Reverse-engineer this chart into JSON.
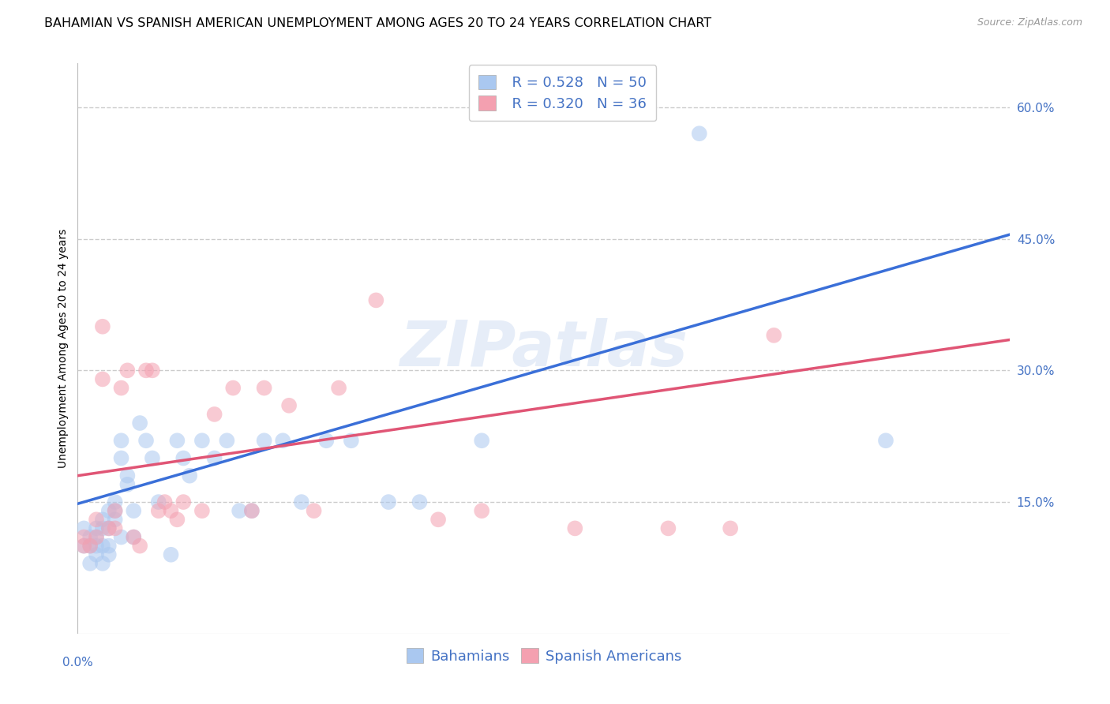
{
  "title": "BAHAMIAN VS SPANISH AMERICAN UNEMPLOYMENT AMONG AGES 20 TO 24 YEARS CORRELATION CHART",
  "source": "Source: ZipAtlas.com",
  "ylabel": "Unemployment Among Ages 20 to 24 years",
  "x_min": 0.0,
  "x_max": 0.15,
  "y_min": 0.0,
  "y_max": 0.65,
  "right_yticks": [
    0.15,
    0.3,
    0.45,
    0.6
  ],
  "right_yticklabels": [
    "15.0%",
    "30.0%",
    "45.0%",
    "60.0%"
  ],
  "grid_color": "#cccccc",
  "bahamian_color": "#aac8f0",
  "spanish_color": "#f4a0b0",
  "blue_line_color": "#3a6fd8",
  "pink_line_color": "#e05575",
  "legend_blue_R": "R = 0.528",
  "legend_blue_N": "N = 50",
  "legend_pink_R": "R = 0.320",
  "legend_pink_N": "N = 36",
  "bahamian_x": [
    0.001,
    0.001,
    0.002,
    0.002,
    0.002,
    0.003,
    0.003,
    0.003,
    0.003,
    0.004,
    0.004,
    0.004,
    0.004,
    0.005,
    0.005,
    0.005,
    0.005,
    0.006,
    0.006,
    0.006,
    0.007,
    0.007,
    0.007,
    0.008,
    0.008,
    0.009,
    0.009,
    0.01,
    0.011,
    0.012,
    0.013,
    0.015,
    0.016,
    0.017,
    0.018,
    0.02,
    0.022,
    0.024,
    0.026,
    0.028,
    0.03,
    0.033,
    0.036,
    0.04,
    0.044,
    0.05,
    0.055,
    0.065,
    0.1,
    0.13
  ],
  "bahamian_y": [
    0.1,
    0.12,
    0.11,
    0.1,
    0.08,
    0.12,
    0.09,
    0.1,
    0.11,
    0.13,
    0.12,
    0.1,
    0.08,
    0.14,
    0.12,
    0.1,
    0.09,
    0.15,
    0.14,
    0.13,
    0.22,
    0.2,
    0.11,
    0.18,
    0.17,
    0.14,
    0.11,
    0.24,
    0.22,
    0.2,
    0.15,
    0.09,
    0.22,
    0.2,
    0.18,
    0.22,
    0.2,
    0.22,
    0.14,
    0.14,
    0.22,
    0.22,
    0.15,
    0.22,
    0.22,
    0.15,
    0.15,
    0.22,
    0.57,
    0.22
  ],
  "spanish_x": [
    0.001,
    0.001,
    0.002,
    0.003,
    0.003,
    0.004,
    0.004,
    0.005,
    0.006,
    0.006,
    0.007,
    0.008,
    0.009,
    0.01,
    0.011,
    0.012,
    0.013,
    0.014,
    0.015,
    0.016,
    0.017,
    0.02,
    0.022,
    0.025,
    0.028,
    0.03,
    0.034,
    0.038,
    0.042,
    0.048,
    0.058,
    0.065,
    0.08,
    0.095,
    0.105,
    0.112
  ],
  "spanish_y": [
    0.11,
    0.1,
    0.1,
    0.13,
    0.11,
    0.35,
    0.29,
    0.12,
    0.14,
    0.12,
    0.28,
    0.3,
    0.11,
    0.1,
    0.3,
    0.3,
    0.14,
    0.15,
    0.14,
    0.13,
    0.15,
    0.14,
    0.25,
    0.28,
    0.14,
    0.28,
    0.26,
    0.14,
    0.28,
    0.38,
    0.13,
    0.14,
    0.12,
    0.12,
    0.12,
    0.34
  ],
  "blue_line_x0": 0.0,
  "blue_line_y0": 0.148,
  "blue_line_x1": 0.15,
  "blue_line_y1": 0.455,
  "pink_line_x0": 0.0,
  "pink_line_y0": 0.18,
  "pink_line_x1": 0.15,
  "pink_line_y1": 0.335,
  "watermark_text": "ZIPatlas",
  "marker_size": 200,
  "marker_alpha": 0.55,
  "title_fontsize": 11.5,
  "source_fontsize": 9,
  "axis_label_fontsize": 10,
  "tick_fontsize": 11,
  "legend_fontsize": 13,
  "right_tick_color": "#4472c4",
  "bottom_tick_color": "#4472c4",
  "legend_text_color": "#4472c4"
}
